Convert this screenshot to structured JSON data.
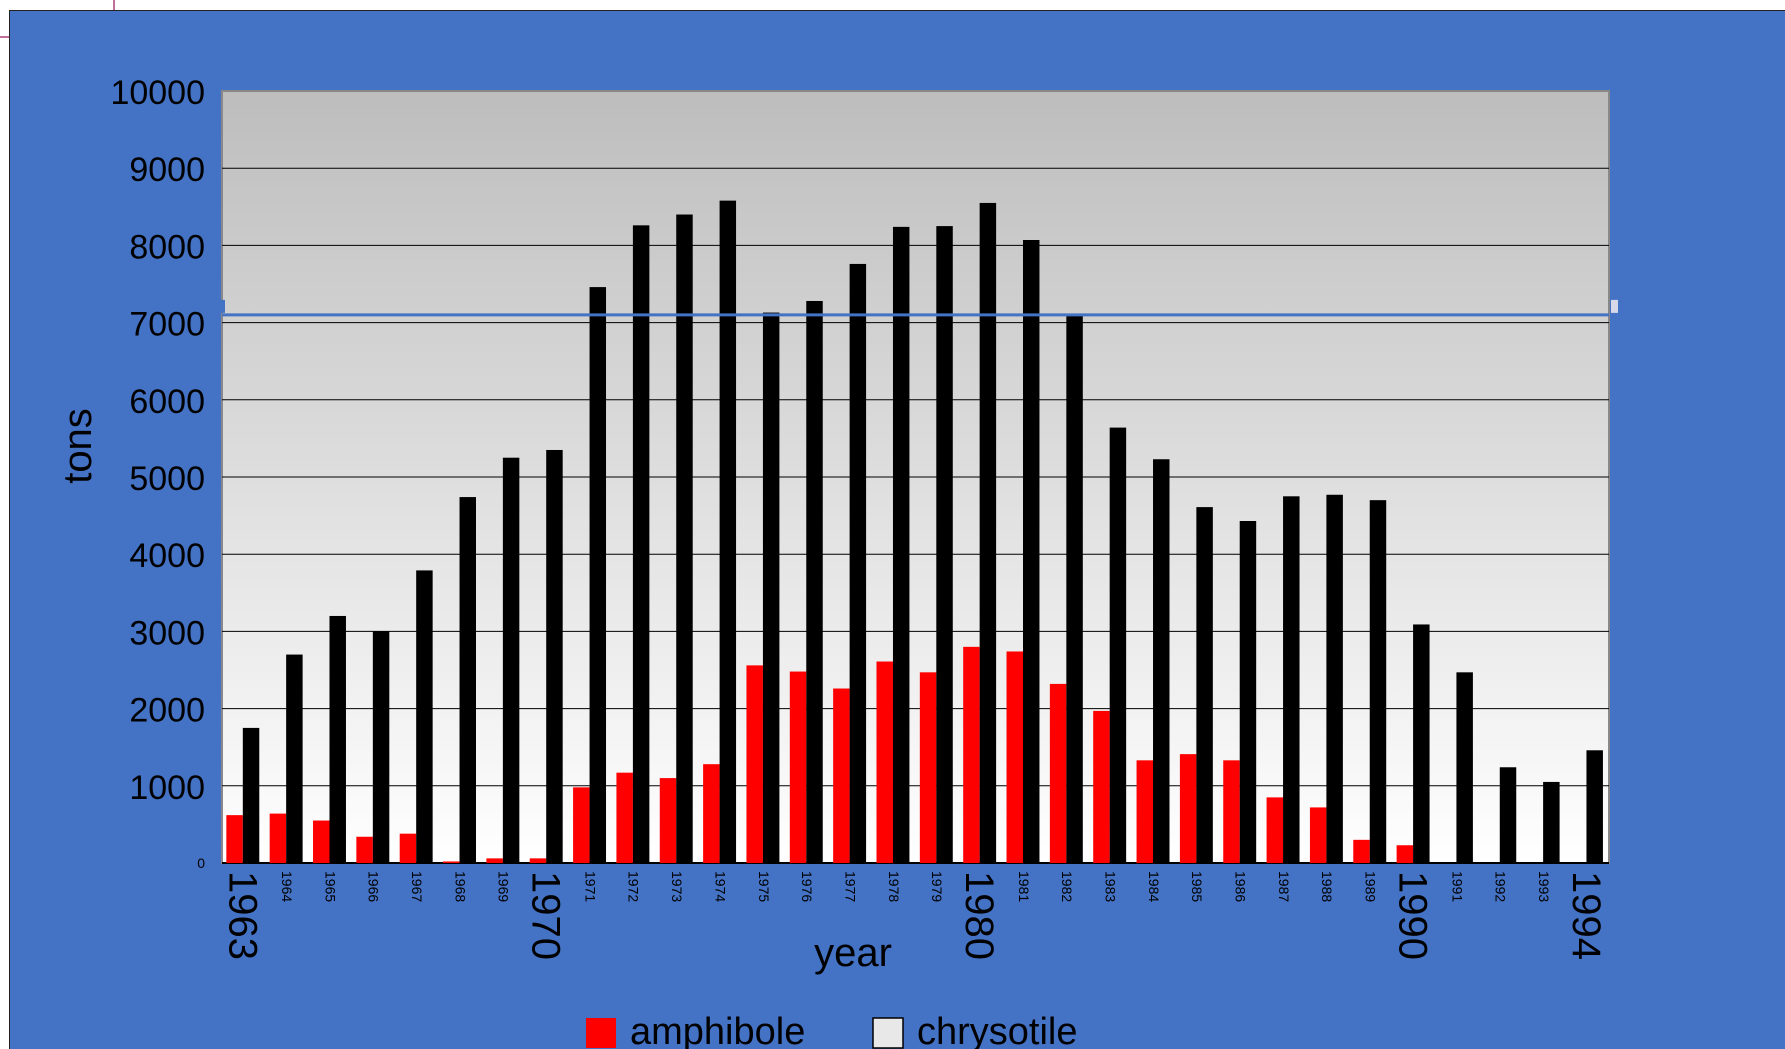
{
  "chart_data": {
    "type": "bar",
    "title": "",
    "xlabel": "year",
    "ylabel": "tons",
    "ylim": [
      0,
      10000
    ],
    "yticks": [
      0,
      1000,
      2000,
      3000,
      4000,
      5000,
      6000,
      7000,
      8000,
      9000,
      10000
    ],
    "categories": [
      "1963",
      "1964",
      "1965",
      "1966",
      "1967",
      "1968",
      "1969",
      "1970",
      "1971",
      "1972",
      "1973",
      "1974",
      "1975",
      "1976",
      "1977",
      "1978",
      "1979",
      "1980",
      "1981",
      "1982",
      "1983",
      "1984",
      "1985",
      "1986",
      "1987",
      "1988",
      "1989",
      "1990",
      "1991",
      "1992",
      "1993",
      "1994"
    ],
    "emphasized_categories": [
      "1963",
      "1970",
      "1980",
      "1990",
      "1994"
    ],
    "series": [
      {
        "name": "amphibole",
        "color": "#ff0000",
        "values": [
          620,
          640,
          550,
          340,
          380,
          20,
          60,
          60,
          980,
          1170,
          1100,
          1280,
          2560,
          2480,
          2260,
          2610,
          2470,
          2800,
          2740,
          2320,
          1970,
          1330,
          1410,
          1330,
          850,
          720,
          300,
          230,
          0,
          0,
          0,
          0
        ]
      },
      {
        "name": "chrysotile",
        "color": "#000000",
        "legend_swatch": "#e8e8e8",
        "values": [
          1750,
          2700,
          3200,
          3000,
          3790,
          4740,
          5250,
          5350,
          7460,
          8260,
          8400,
          8580,
          7130,
          7280,
          7760,
          8240,
          8250,
          8550,
          8070,
          7090,
          5640,
          5230,
          4610,
          4430,
          4750,
          4770,
          4700,
          3090,
          2470,
          1240,
          1050,
          1460
        ]
      }
    ],
    "reference_line": {
      "value": 7100,
      "color": "#4472c4"
    },
    "grid": true,
    "legend_position": "bottom",
    "plot_background": {
      "top": "#bdbdbd",
      "bottom": "#ffffff"
    }
  }
}
